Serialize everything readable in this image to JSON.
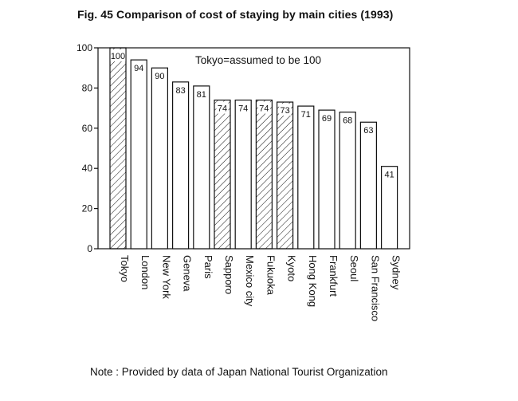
{
  "figure": {
    "title": "Fig. 45 Comparison of cost of staying by main cities (1993)",
    "note": "Note : Provided by data of Japan National Tourist Organization"
  },
  "chart_data": {
    "type": "bar",
    "title": "Fig. 45 Comparison of cost of staying by main cities (1993)",
    "annotation": "Tokyo=assumed to be 100",
    "xlabel": "",
    "ylabel": "",
    "ylim": [
      0,
      100
    ],
    "yticks": [
      0,
      20,
      40,
      60,
      80,
      100
    ],
    "grid": false,
    "categories": [
      "Tokyo",
      "London",
      "New York",
      "Geneva",
      "Paris",
      "Sapporo",
      "Mexico city",
      "Fukuoka",
      "Kyoto",
      "Hong Kong",
      "Frankfurt",
      "Seoul",
      "San Francisco",
      "Sydney"
    ],
    "values": [
      100,
      94,
      90,
      83,
      81,
      74,
      74,
      74,
      73,
      71,
      69,
      68,
      63,
      41
    ],
    "hatched": [
      true,
      false,
      false,
      false,
      false,
      true,
      false,
      true,
      true,
      false,
      false,
      false,
      false,
      false
    ],
    "colors": {
      "stroke": "#111111",
      "fill": "#ffffff",
      "hatch": "#111111"
    }
  }
}
